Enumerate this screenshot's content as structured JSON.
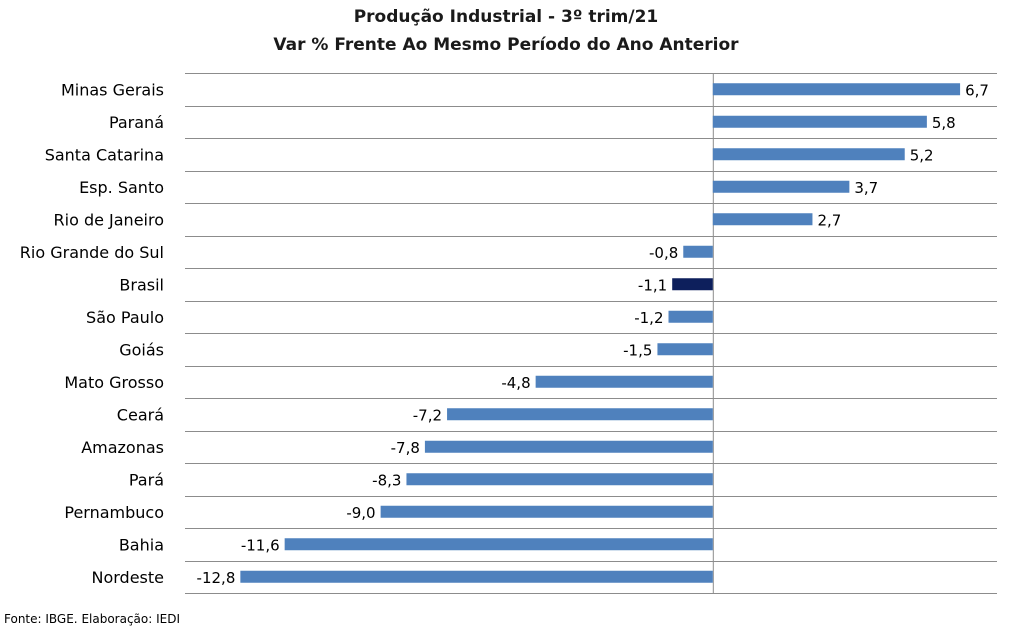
{
  "chart_data": {
    "type": "bar",
    "orientation": "horizontal",
    "title": "Produção Industrial - 3º trim/21",
    "subtitle": "Var % Frente Ao Mesmo Período do Ano Anterior",
    "categories": [
      "Minas Gerais",
      "Paraná",
      "Santa Catarina",
      "Esp. Santo",
      "Rio de Janeiro",
      "Rio Grande do Sul",
      "Brasil",
      "São Paulo",
      "Goiás",
      "Mato Grosso",
      "Ceará",
      "Amazonas",
      "Pará",
      "Pernambuco",
      "Bahia",
      "Nordeste"
    ],
    "values": [
      6.7,
      5.8,
      5.2,
      3.7,
      2.7,
      -0.8,
      -1.1,
      -1.2,
      -1.5,
      -4.8,
      -7.2,
      -7.8,
      -8.3,
      -9.0,
      -11.6,
      -12.8
    ],
    "value_labels": [
      "6,7",
      "5,8",
      "5,2",
      "3,7",
      "2,7",
      "-0,8",
      "-1,1",
      "-1,2",
      "-1,5",
      "-4,8",
      "-7,2",
      "-7,8",
      "-8,3",
      "-9,0",
      "-11,6",
      "-12,8"
    ],
    "xlim": [
      -14.3,
      7.7
    ],
    "highlight_category": "Brasil",
    "colors": {
      "bar": "#4f81bd",
      "highlight": "#0d1f5c",
      "grid": "#8c8c8c"
    },
    "grid": true,
    "legend": "none"
  },
  "footer": {
    "source": "Fonte: IBGE. Elaboração: IEDI"
  }
}
